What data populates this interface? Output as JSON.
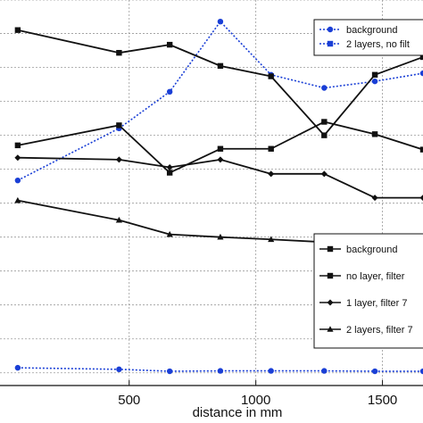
{
  "chart_data": {
    "type": "line",
    "xlabel": "distance in mm",
    "ylabel": "",
    "xlim": [
      -10,
      1660
    ],
    "ylim": [
      0,
      100
    ],
    "x_ticks": [
      500,
      1000,
      1500
    ],
    "x_tick_labels": [
      "500",
      "1000",
      "1500"
    ],
    "y_gridlines": [
      3.3,
      12.1,
      20.9,
      29.7,
      38.5,
      47.3,
      56.1,
      64.9,
      73.7,
      82.5,
      91.3,
      100
    ],
    "grid": true,
    "series": [
      {
        "name": "background",
        "color": "#1a3fd6",
        "dash": "dotted",
        "marker": "circle",
        "axis": "upper",
        "x": [
          60,
          460,
          660,
          860,
          1060,
          1270,
          1470,
          1660
        ],
        "y": [
          53.2,
          66.7,
          76.2,
          94.4,
          80.6,
          77.2,
          78.9,
          81.0
        ]
      },
      {
        "name": "2 layers, no filt",
        "color": "#1a3fd6",
        "dash": "dotted",
        "marker": "square",
        "axis": "upper",
        "x": [],
        "y": []
      },
      {
        "name": "background",
        "color": "#111111",
        "dash": "solid",
        "marker": "square",
        "axis": "lower",
        "x": [
          60,
          460,
          660,
          860,
          1060,
          1270,
          1470,
          1660
        ],
        "y": [
          92.2,
          86.3,
          88.4,
          82.9,
          80.2,
          64.9,
          80.6,
          85.2
        ]
      },
      {
        "name": "no layer, filter",
        "color": "#111111",
        "dash": "solid",
        "marker": "square",
        "axis": "lower",
        "x": [
          60,
          460,
          660,
          860,
          1060,
          1270,
          1470,
          1660
        ],
        "y": [
          62.3,
          67.5,
          55.2,
          61.4,
          61.4,
          68.4,
          65.2,
          61.2
        ]
      },
      {
        "name": "1 layer, filter 7",
        "color": "#111111",
        "dash": "solid",
        "marker": "diamond",
        "axis": "lower",
        "x": [
          60,
          460,
          660,
          860,
          1060,
          1270,
          1470,
          1660
        ],
        "y": [
          59.1,
          58.6,
          56.6,
          58.6,
          54.9,
          54.9,
          48.7,
          48.7
        ]
      },
      {
        "name": "2 layers, filter 7",
        "color": "#111111",
        "dash": "solid",
        "marker": "triangle",
        "axis": "lower",
        "x": [
          60,
          460,
          660,
          860,
          1060,
          1270,
          1470,
          1660
        ],
        "y": [
          48.0,
          42.9,
          39.2,
          38.5,
          37.9,
          37.2,
          36.5,
          36.0
        ]
      },
      {
        "name": "",
        "color": "#1a3fd6",
        "dash": "dotted",
        "marker": "circle",
        "axis": "lower",
        "x": [
          60,
          460,
          660,
          860,
          1060,
          1270,
          1470,
          1660
        ],
        "y": [
          4.6,
          4.2,
          3.7,
          3.8,
          3.8,
          3.8,
          3.7,
          3.7
        ]
      }
    ],
    "legends": [
      {
        "placement": "top-right",
        "entries": [
          {
            "label": "background",
            "color": "#1a3fd6",
            "dash": "dotted",
            "marker": "circle"
          },
          {
            "label": "2 layers, no filt",
            "color": "#1a3fd6",
            "dash": "dotted",
            "marker": "square"
          }
        ]
      },
      {
        "placement": "bottom-right",
        "entries": [
          {
            "label": "background",
            "color": "#111111",
            "dash": "solid",
            "marker": "square"
          },
          {
            "label": "no layer, filter",
            "color": "#111111",
            "dash": "solid",
            "marker": "square"
          },
          {
            "label": "1 layer, filter 7",
            "color": "#111111",
            "dash": "solid",
            "marker": "diamond"
          },
          {
            "label": "2 layers, filter 7",
            "color": "#111111",
            "dash": "solid",
            "marker": "triangle"
          }
        ]
      }
    ]
  }
}
